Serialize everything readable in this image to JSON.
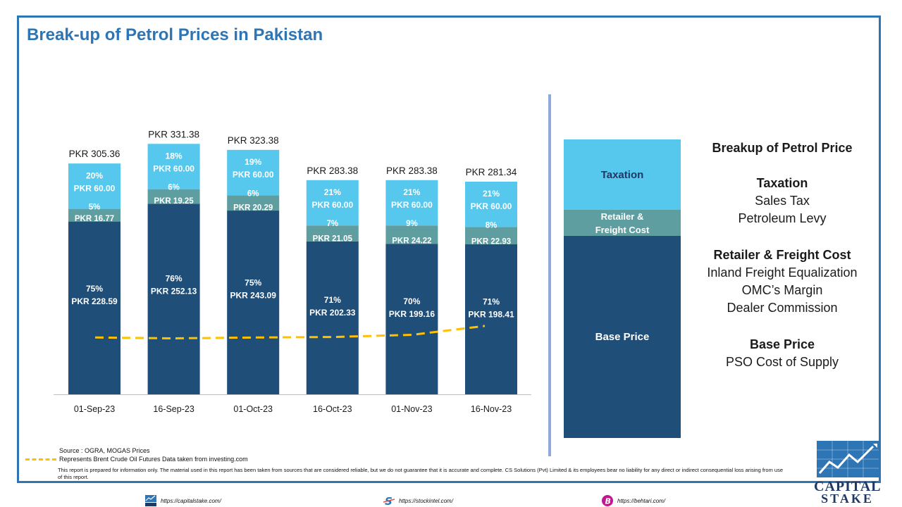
{
  "title": "Break-up of Petrol Prices in Pakistan",
  "chart_data": {
    "type": "bar",
    "stacked": true,
    "categories": [
      "01-Sep-23",
      "16-Sep-23",
      "01-Oct-23",
      "16-Oct-23",
      "01-Nov-23",
      "16-Nov-23"
    ],
    "series": [
      {
        "name": "Base Price",
        "color": "#1f4e79",
        "values": [
          228.59,
          252.13,
          243.09,
          202.33,
          199.16,
          198.41
        ],
        "labels": [
          "PKR 228.59",
          "PKR 252.13",
          "PKR 243.09",
          "PKR 202.33",
          "PKR 199.16",
          "PKR 198.41"
        ],
        "percents": [
          "75%",
          "76%",
          "75%",
          "71%",
          "70%",
          "71%"
        ]
      },
      {
        "name": "Retailer & Freight Cost",
        "color": "#5f9ea0",
        "values": [
          16.77,
          19.25,
          20.29,
          21.05,
          24.22,
          22.93
        ],
        "labels": [
          "PKR 16.77",
          "PKR 19.25",
          "PKR 20.29",
          "PKR 21.05",
          "PKR 24.22",
          "PKR 22.93"
        ],
        "percents": [
          "5%",
          "6%",
          "6%",
          "7%",
          "9%",
          "8%"
        ]
      },
      {
        "name": "Taxation",
        "color": "#56c8ee",
        "values": [
          60.0,
          60.0,
          60.0,
          60.0,
          60.0,
          60.0
        ],
        "labels": [
          "PKR 60.00",
          "PKR 60.00",
          "PKR 60.00",
          "PKR 60.00",
          "PKR 60.00",
          "PKR 60.00"
        ],
        "percents": [
          "20%",
          "18%",
          "19%",
          "21%",
          "21%",
          "21%"
        ]
      }
    ],
    "totals": [
      "PKR 305.36",
      "PKR 331.38",
      "PKR 323.38",
      "PKR 283.38",
      "PKR 283.38",
      "PKR 281.34"
    ],
    "total_values": [
      305.36,
      331.38,
      323.38,
      283.38,
      283.38,
      281.34
    ],
    "brent_line": {
      "color": "#ffc000",
      "style": "dashed",
      "relative_level": [
        0.98,
        0.96,
        0.98,
        0.99,
        1.04,
        1.24
      ]
    }
  },
  "legend": {
    "taxation": "Taxation",
    "retailer_line1": "Retailer &",
    "retailer_line2": "Freight Cost",
    "base": "Base Price"
  },
  "breakdown": {
    "title": "Breakup of Petrol Price",
    "taxation_head": "Taxation",
    "taxation_items": [
      "Sales Tax",
      "Petroleum Levy"
    ],
    "retailer_head": "Retailer & Freight Cost",
    "retailer_items": [
      "Inland Freight Equalization",
      "OMC’s Margin",
      "Dealer Commission"
    ],
    "base_head": "Base Price",
    "base_items": [
      "PSO Cost of Supply"
    ]
  },
  "source": "Source : OGRA, MOGAS Prices",
  "brent_note": "Represents Brent Crude Oil Futures Data taken from investing.com",
  "disclaimer": "This report is prepared for information only. The material used in this report has been taken from sources that are considered reliable, but we do not guarantee that it is accurate and complete. CS Solutions (Pvt) Limited & its employees bear no liability for any direct or indirect consequential loss arising from use of this report.",
  "footer": {
    "link1": "https://capitalstake.com/",
    "link2": "https://stockintel.com/",
    "link3": "https://behtari.com/"
  },
  "logo": {
    "line1": "CAPITAL",
    "line2": "STAKE"
  }
}
